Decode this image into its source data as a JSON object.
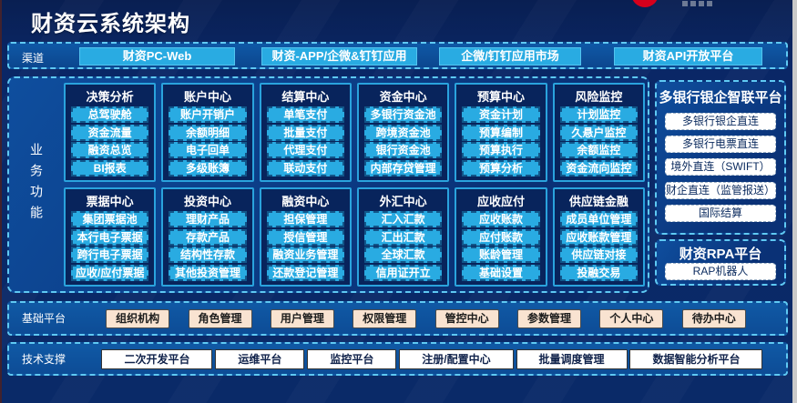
{
  "header": {
    "title": "财资云系统架构"
  },
  "channels": {
    "label": "渠道",
    "items": [
      "财资PC-Web",
      "财资-APP/企微&钉钉应用",
      "企微/钉钉应用市场",
      "财资API开放平台"
    ]
  },
  "business": {
    "label": "业务功能",
    "modules": [
      {
        "title": "决策分析",
        "items": [
          "总驾驶舱",
          "资金流量",
          "融资总览",
          "BI报表"
        ]
      },
      {
        "title": "账户中心",
        "items": [
          "账户开销户",
          "余额明细",
          "电子回单",
          "多级账簿"
        ]
      },
      {
        "title": "结算中心",
        "items": [
          "单笔支付",
          "批量支付",
          "代理支付",
          "联动支付"
        ]
      },
      {
        "title": "资金中心",
        "items": [
          "多银行资金池",
          "跨境资金池",
          "银行资金池",
          "内部存贷管理"
        ]
      },
      {
        "title": "预算中心",
        "items": [
          "资金计划",
          "预算编制",
          "预算执行",
          "预算分析"
        ]
      },
      {
        "title": "风险监控",
        "items": [
          "计划监控",
          "久悬户监控",
          "余额监控",
          "资金流向监控"
        ]
      },
      {
        "title": "票据中心",
        "items": [
          "集团票据池",
          "本行电子票据",
          "跨行电子票据",
          "应收/应付票据"
        ]
      },
      {
        "title": "投资中心",
        "items": [
          "理财产品",
          "存款产品",
          "结构性存款",
          "其他投资管理"
        ]
      },
      {
        "title": "融资中心",
        "items": [
          "担保管理",
          "授信管理",
          "融资业务管理",
          "还款登记管理"
        ]
      },
      {
        "title": "外汇中心",
        "items": [
          "汇入汇款",
          "汇出汇款",
          "全球汇款",
          "信用证开立"
        ]
      },
      {
        "title": "应收应付",
        "items": [
          "应收账款",
          "应付账款",
          "账龄管理",
          "基础设置"
        ]
      },
      {
        "title": "供应链金融",
        "items": [
          "成员单位管理",
          "应收账款管理",
          "供应链对接",
          "投融交易"
        ]
      }
    ]
  },
  "bank_platform": {
    "title": "多银行银企智联平台",
    "items": [
      "多银行银企直连",
      "多银行电票直连",
      "境外直连（SWIFT）",
      "财企直连（监管报送）",
      "国际结算"
    ]
  },
  "rpa_platform": {
    "title": "财资RPA平台",
    "items": [
      "RAP机器人"
    ]
  },
  "base_platform": {
    "label": "基础平台",
    "items": [
      "组织机构",
      "角色管理",
      "用户管理",
      "权限管理",
      "管控中心",
      "参数管理",
      "个人中心",
      "待办中心"
    ]
  },
  "tech_support": {
    "label": "技术支撑",
    "items": [
      "二次开发平台",
      "运维平台",
      "监控平台",
      "注册/配置中心",
      "批量调度管理",
      "数据智能分析平台"
    ]
  },
  "colors": {
    "accent_cyan": "#29abe2",
    "deep_navy": "#08245c",
    "border_cyan": "#5fc9f3",
    "panel_blue": "#0d4a97",
    "peach_button": "#f9e3d1",
    "white_button": "#ffffff",
    "logo_red": "#d6001c"
  }
}
